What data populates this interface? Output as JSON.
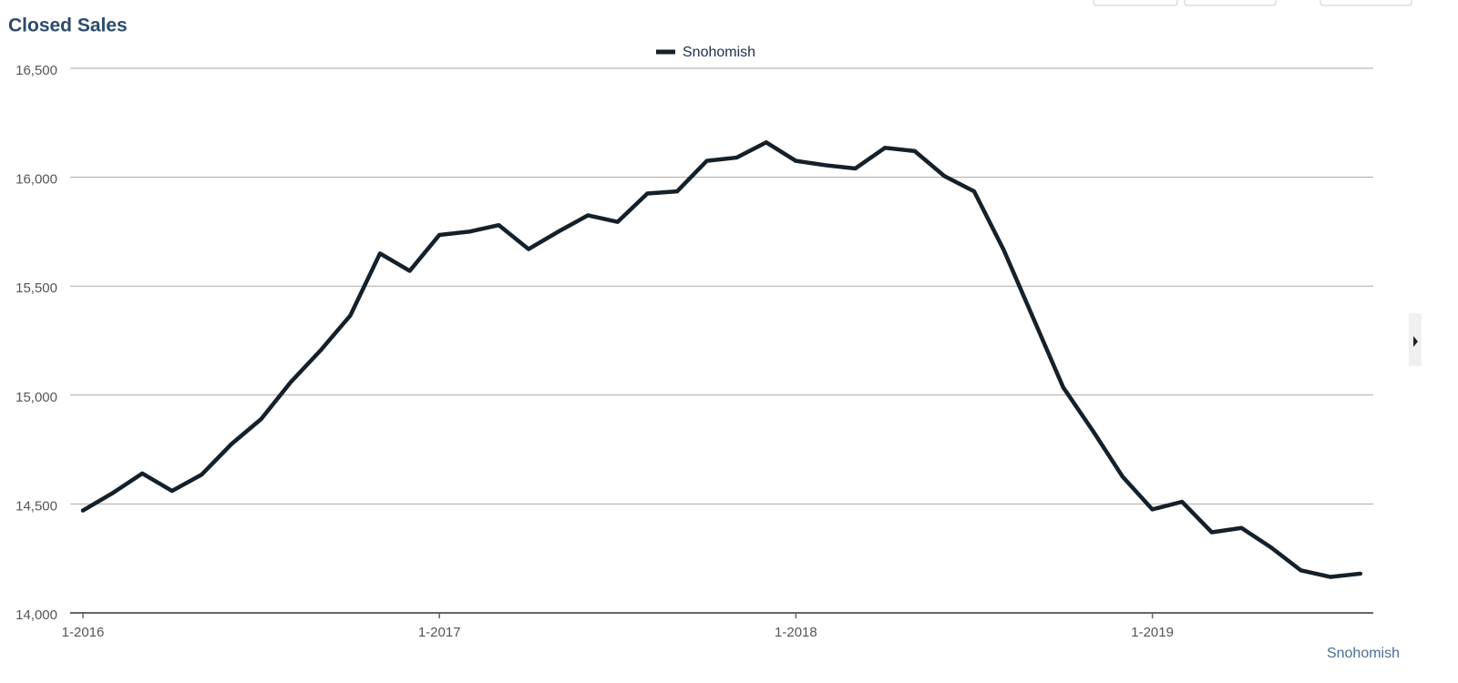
{
  "chart_data": {
    "type": "line",
    "title": "Closed Sales",
    "categories": [
      "1-2016",
      null,
      null,
      null,
      null,
      null,
      null,
      null,
      null,
      null,
      null,
      null,
      "1-2017",
      null,
      null,
      null,
      null,
      null,
      null,
      null,
      null,
      null,
      null,
      null,
      "1-2018",
      null,
      null,
      null,
      null,
      null,
      null,
      null,
      null,
      null,
      null,
      null,
      "1-2019",
      null,
      null,
      null,
      null,
      null,
      null,
      null
    ],
    "series": [
      {
        "name": "Snohomish",
        "color": "#14202a",
        "values": [
          14470,
          14550,
          14640,
          14560,
          14635,
          14775,
          14890,
          15060,
          15205,
          15365,
          15650,
          15570,
          15735,
          15750,
          15780,
          15670,
          15750,
          15825,
          15795,
          15925,
          15935,
          16075,
          16090,
          16160,
          16075,
          16055,
          16040,
          16135,
          16120,
          16005,
          15935,
          15665,
          15350,
          15035,
          14835,
          14625,
          14475,
          14510,
          14370,
          14390,
          14300,
          14195,
          14165,
          14180
        ]
      }
    ],
    "ylim": [
      14000,
      16500
    ],
    "yticks": [
      {
        "value": 14000,
        "label": "14,000"
      },
      {
        "value": 14500,
        "label": "14,500"
      },
      {
        "value": 15000,
        "label": "15,000"
      },
      {
        "value": 15500,
        "label": "15,500"
      },
      {
        "value": 16000,
        "label": "16,000"
      },
      {
        "value": 16500,
        "label": "16,500"
      }
    ],
    "grid": true,
    "legend": "top",
    "footer_label": "Snohomish"
  }
}
